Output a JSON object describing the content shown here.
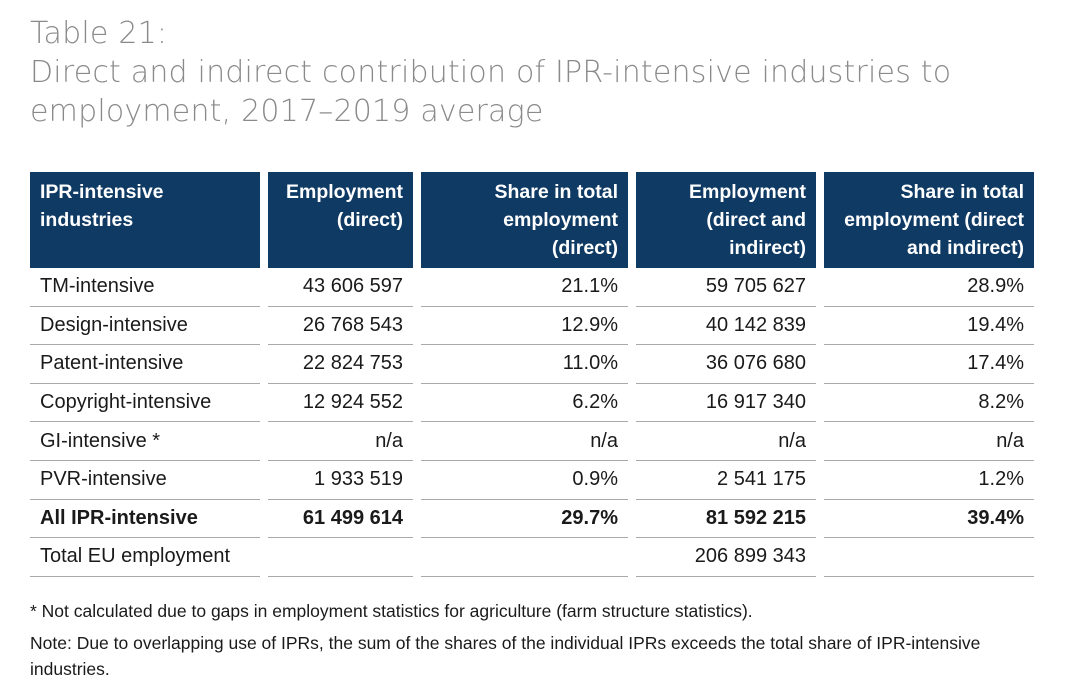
{
  "title": {
    "line1": "Table 21:",
    "line2": "Direct and indirect contribution of IPR-intensive industries to",
    "line3": "employment, 2017–2019 average"
  },
  "table": {
    "headers": [
      [
        "IPR-intensive",
        "industries"
      ],
      [
        "Employment",
        "(direct)"
      ],
      [
        "Share in total",
        "employment",
        "(direct)"
      ],
      [
        "Employment",
        "(direct and",
        "indirect)"
      ],
      [
        "Share in total",
        "employment (direct",
        "and indirect)"
      ]
    ],
    "rows": [
      [
        "TM-intensive",
        "43 606 597",
        "21.1%",
        "59 705 627",
        "28.9%"
      ],
      [
        "Design-intensive",
        "26 768 543",
        "12.9%",
        "40 142 839",
        "19.4%"
      ],
      [
        "Patent-intensive",
        "22 824 753",
        "11.0%",
        "36 076 680",
        "17.4%"
      ],
      [
        "Copyright-intensive",
        "12 924 552",
        "6.2%",
        "16 917 340",
        "8.2%"
      ],
      [
        "GI-intensive *",
        "n/a",
        "n/a",
        "n/a",
        "n/a"
      ],
      [
        "PVR-intensive",
        "1 933 519",
        "0.9%",
        "2 541 175",
        "1.2%"
      ],
      [
        "All IPR-intensive",
        "61 499 614",
        "29.7%",
        "81 592 215",
        "39.4%"
      ],
      [
        "Total EU employment",
        "",
        "",
        "206 899 343",
        ""
      ]
    ]
  },
  "notes": {
    "footnote": "* Not calculated due to gaps in employment statistics for agriculture (farm structure statistics).",
    "note_line1": "Note: Due to overlapping use of IPRs, the sum of the shares of the individual IPRs exceeds the total share of IPR-intensive",
    "note_line2": "industries."
  }
}
